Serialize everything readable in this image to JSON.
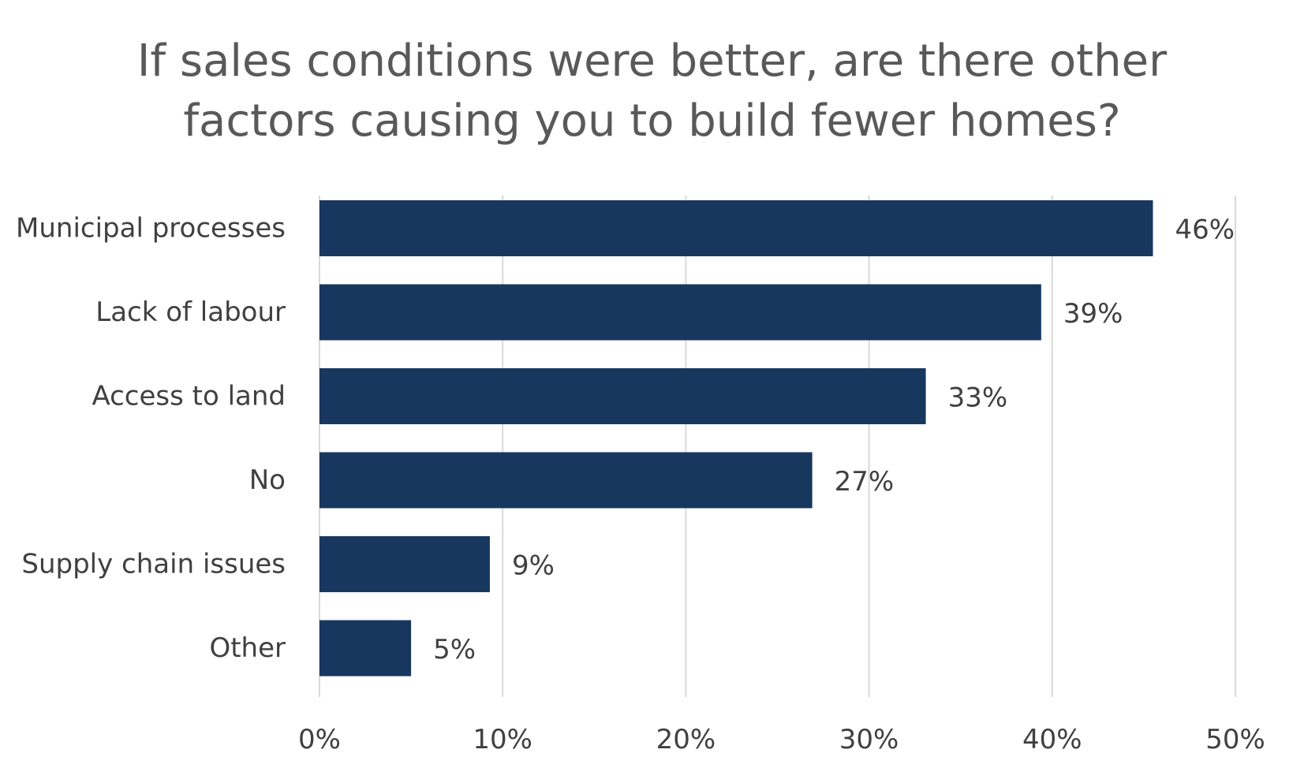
{
  "chart_data": {
    "type": "bar",
    "orientation": "horizontal",
    "title": "If sales conditions were better, are there other factors causing you to build fewer homes?",
    "title_lines": [
      "If sales conditions were better, are there other",
      "factors causing you to build fewer homes?"
    ],
    "categories": [
      "Municipal processes",
      "Lack of labour",
      "Access to land",
      "No",
      "Supply chain issues",
      "Other"
    ],
    "values": [
      45.5,
      39.4,
      33.1,
      26.9,
      9.3,
      5.0
    ],
    "value_labels": [
      "46%",
      "39%",
      "33%",
      "27%",
      "9%",
      "5%"
    ],
    "xlim": [
      0,
      50
    ],
    "xticks": [
      0,
      10,
      20,
      30,
      40,
      50
    ],
    "xtick_labels": [
      "0%",
      "10%",
      "20%",
      "30%",
      "40%",
      "50%"
    ],
    "xlabel": "",
    "ylabel": "",
    "grid": true,
    "legend": "none",
    "bar_color": "#17375e",
    "grid_color": "#d9d9d9"
  }
}
